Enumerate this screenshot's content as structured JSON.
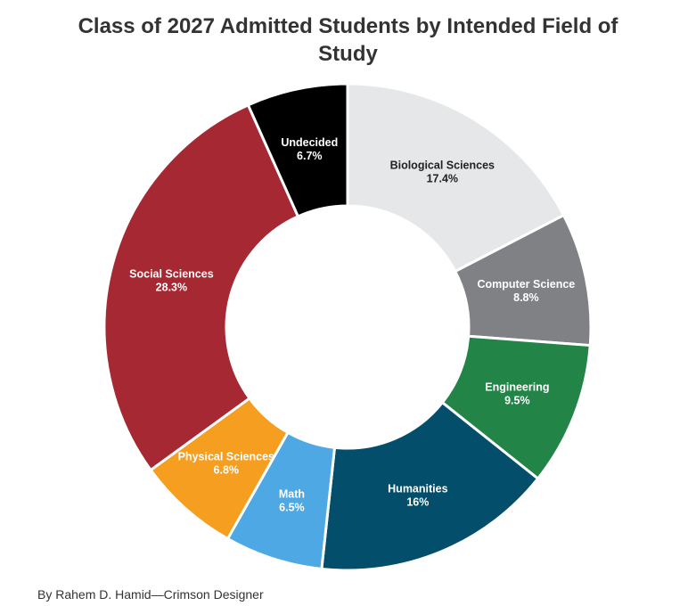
{
  "chart_data": {
    "type": "pie",
    "title": "Class of 2027 Admitted Students by Intended Field of Study",
    "unit": "%",
    "slices": [
      {
        "label": "Biological Sciences",
        "value": 17.4,
        "display": "17.4%",
        "color": "#e6e7e8",
        "text_color": "#222222"
      },
      {
        "label": "Computer Science",
        "value": 8.8,
        "display": "8.8%",
        "color": "#808184",
        "text_color": "#ffffff"
      },
      {
        "label": "Engineering",
        "value": 9.5,
        "display": "9.5%",
        "color": "#228547",
        "text_color": "#ffffff"
      },
      {
        "label": "Humanities",
        "value": 16,
        "display": "16%",
        "color": "#034f6b",
        "text_color": "#ffffff"
      },
      {
        "label": "Math",
        "value": 6.5,
        "display": "6.5%",
        "color": "#4ea8e3",
        "text_color": "#ffffff"
      },
      {
        "label": "Physical Sciences",
        "value": 6.8,
        "display": "6.8%",
        "color": "#f59e20",
        "text_color": "#ffffff"
      },
      {
        "label": "Social Sciences",
        "value": 28.3,
        "display": "28.3%",
        "color": "#a62832",
        "text_color": "#ffffff"
      },
      {
        "label": "Undecided",
        "value": 6.7,
        "display": "6.7%",
        "color": "#000000",
        "text_color": "#ffffff"
      }
    ],
    "donut": true,
    "legend": "none",
    "labels": "inside slices"
  },
  "credit": "By Rahem D. Hamid—Crimson Designer"
}
